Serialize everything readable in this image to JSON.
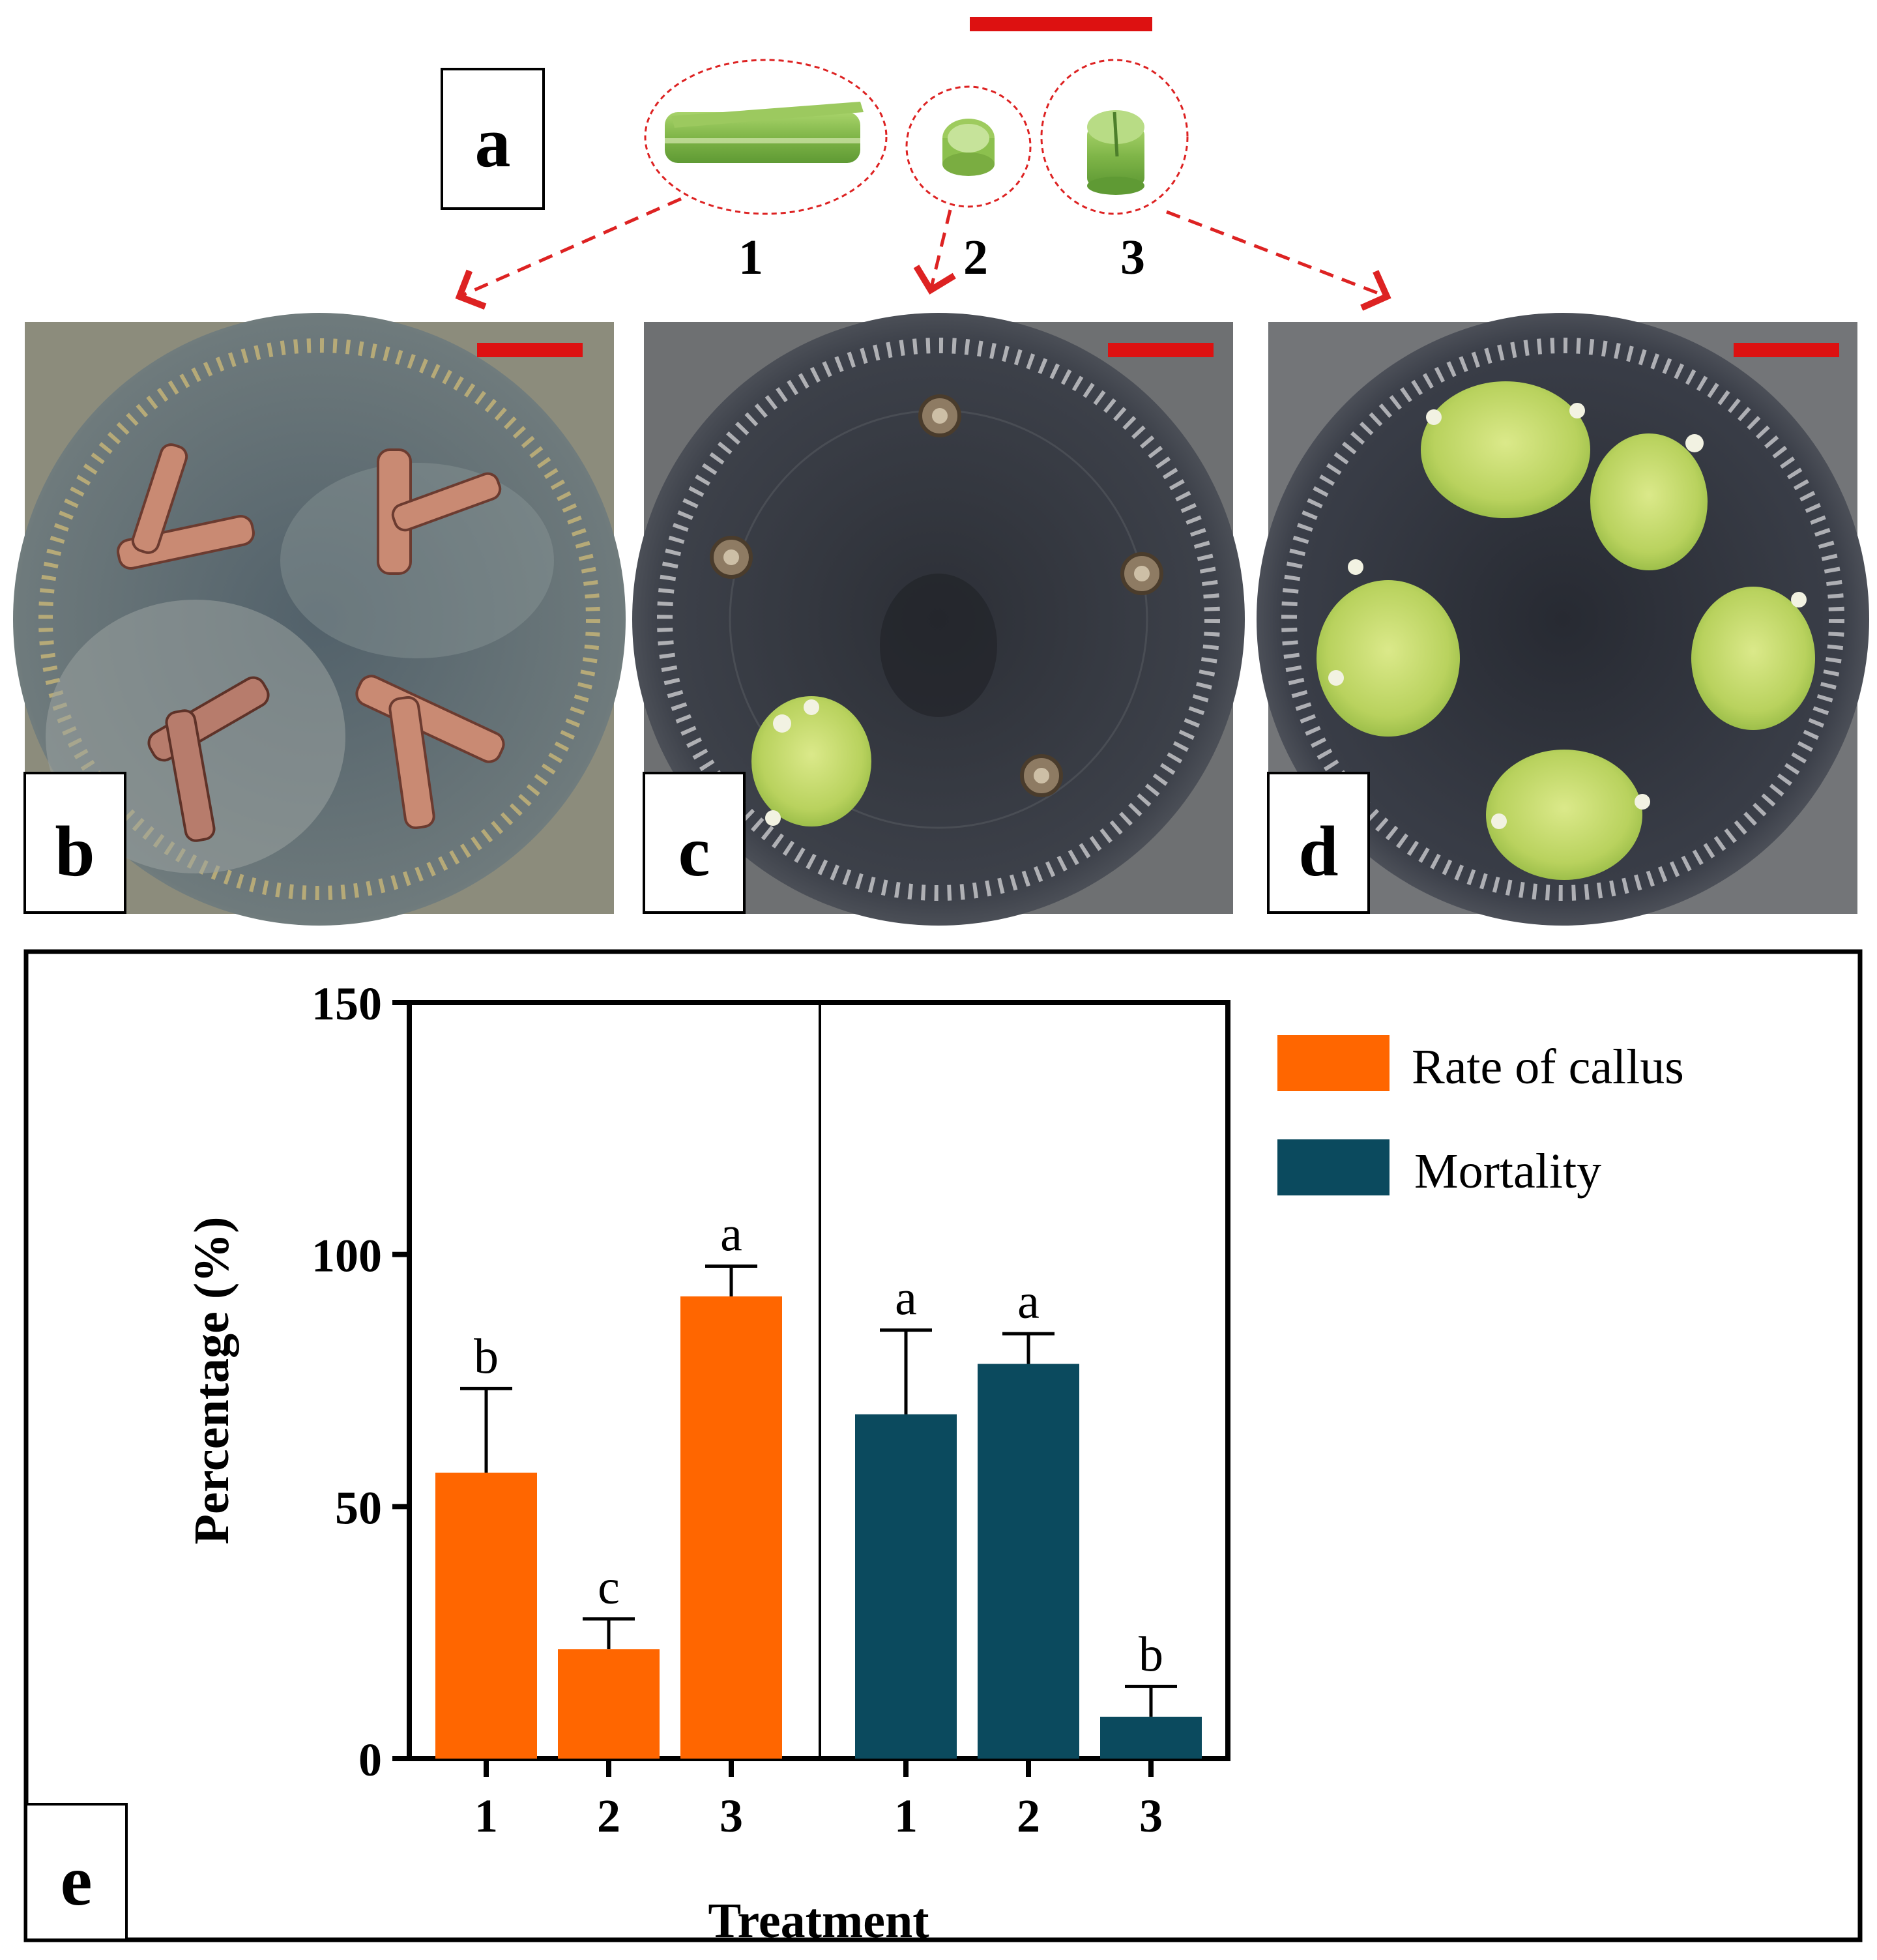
{
  "figure": {
    "panels": {
      "a": {
        "label": "a",
        "explants": [
          {
            "number": "1"
          },
          {
            "number": "2"
          },
          {
            "number": "3"
          }
        ]
      },
      "b": {
        "label": "b"
      },
      "c": {
        "label": "c"
      },
      "d": {
        "label": "d"
      },
      "e": {
        "label": "e"
      }
    }
  },
  "colors": {
    "callus": "#ff6600",
    "mortality": "#0b4a5e",
    "scale_bar": "#dd1111",
    "arrow": "#dd2222"
  },
  "chart_data": {
    "type": "bar",
    "ylabel": "Percentage (%)",
    "xlabel": "Treatment",
    "ylim": [
      0,
      150
    ],
    "yticks": [
      0,
      50,
      100,
      150
    ],
    "groups": [
      {
        "name": "Rate of callus",
        "color": "#ff6600",
        "categories": [
          "1",
          "2",
          "3"
        ],
        "values": [
          56.7,
          21.7,
          91.7
        ],
        "errors": [
          16.7,
          6.0,
          6.0
        ],
        "letters": [
          "b",
          "c",
          "a"
        ]
      },
      {
        "name": "Mortality",
        "color": "#0b4a5e",
        "categories": [
          "1",
          "2",
          "3"
        ],
        "values": [
          68.3,
          78.3,
          8.3
        ],
        "errors": [
          16.7,
          6.0,
          6.0
        ],
        "letters": [
          "a",
          "a",
          "b"
        ]
      }
    ],
    "legend": {
      "position": "top-right",
      "entries": [
        "Rate of callus",
        "Mortality"
      ]
    }
  }
}
